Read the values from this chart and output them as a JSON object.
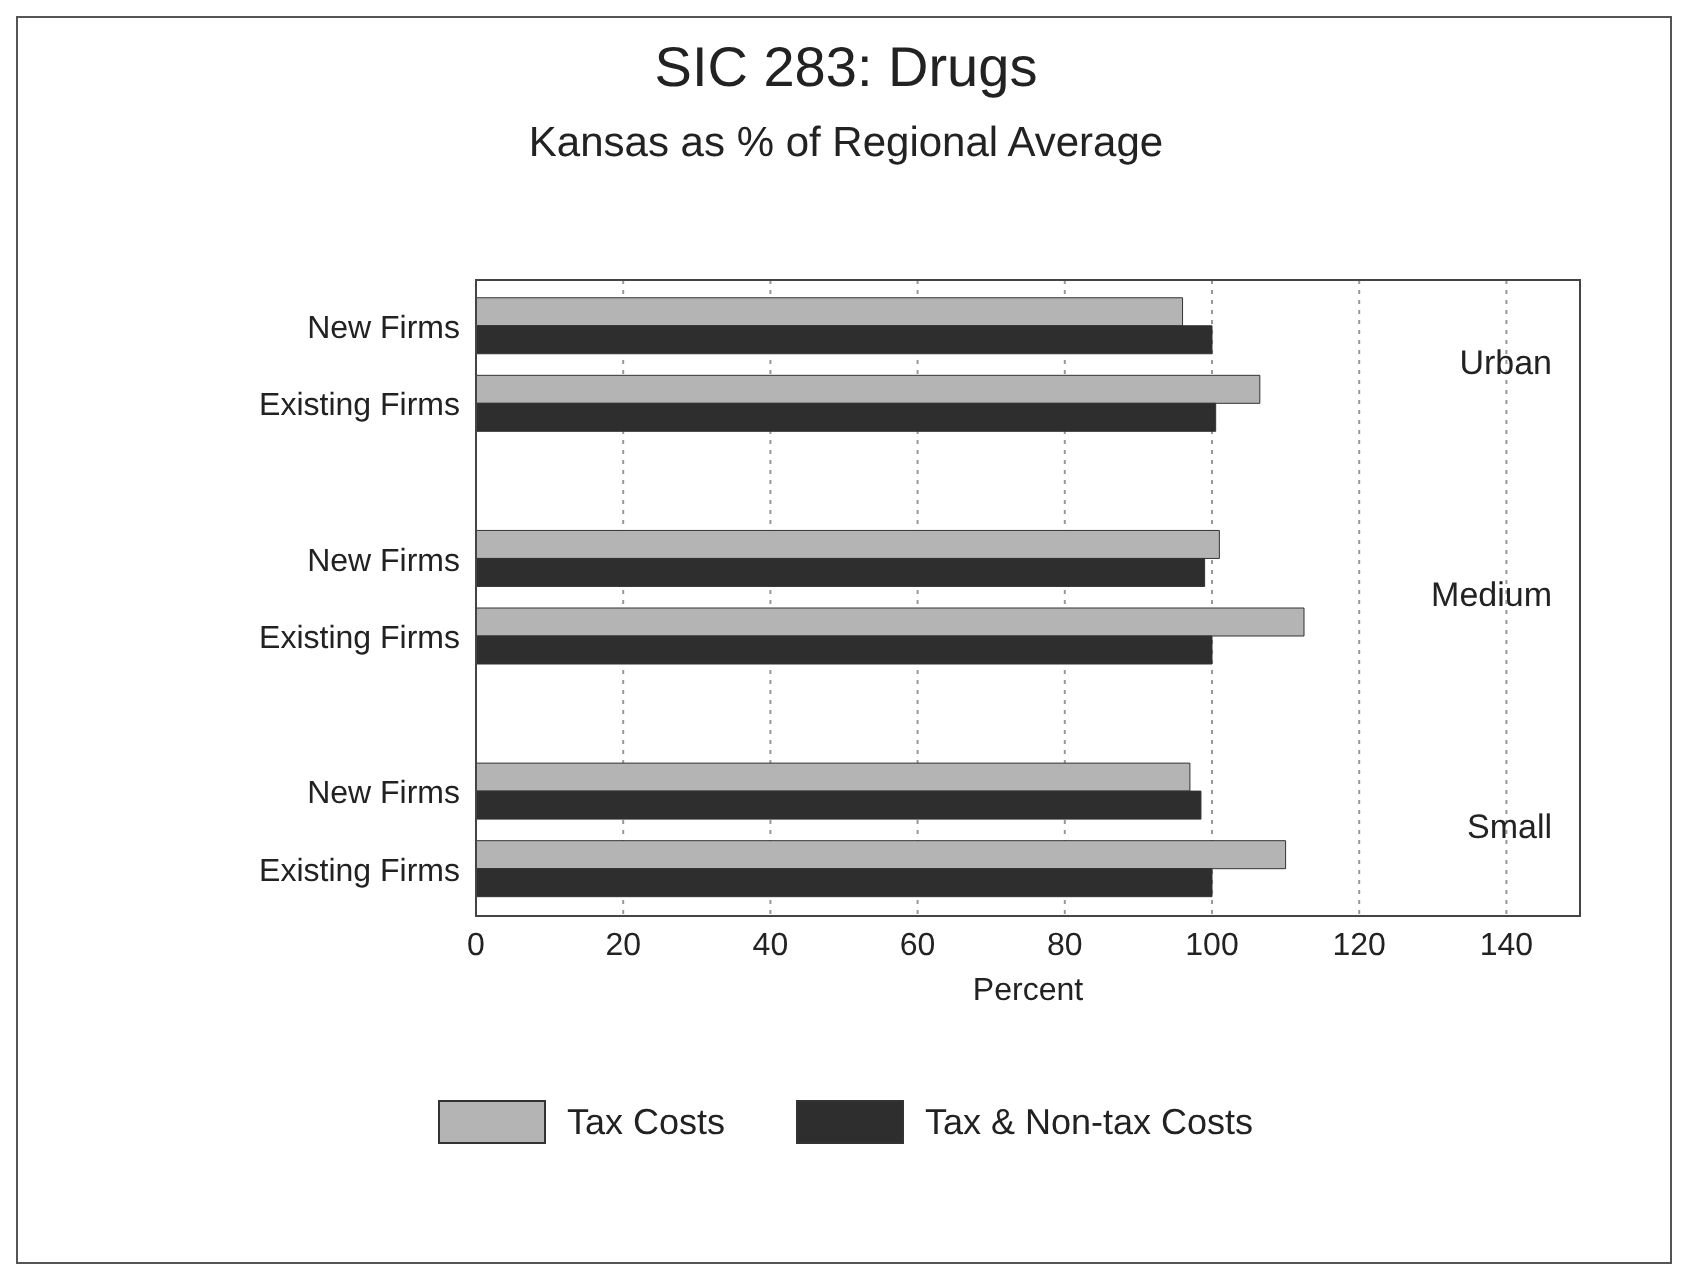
{
  "chart_data": {
    "type": "bar",
    "orientation": "horizontal",
    "title": "SIC 283: Drugs",
    "subtitle": "Kansas as % of Regional Average",
    "xlabel": "Percent",
    "categories": [
      "New Firms",
      "Existing Firms",
      "New Firms",
      "Existing Firms",
      "New Firms",
      "Existing Firms"
    ],
    "series": [
      {
        "name": "Tax Costs",
        "color": "#b4b4b4",
        "values": [
          96,
          106.5,
          101,
          112.5,
          97,
          110
        ]
      },
      {
        "name": "Tax & Non-tax Costs",
        "color": "#2e2e2e",
        "values": [
          100,
          100.5,
          99,
          100,
          98.5,
          100
        ]
      }
    ],
    "xlim": [
      0,
      150
    ],
    "xticks": [
      0,
      20,
      40,
      60,
      80,
      100,
      120,
      140
    ],
    "grid": "x",
    "legend": "bottom",
    "annotations": [
      "Urban",
      "Medium",
      "Small"
    ]
  }
}
